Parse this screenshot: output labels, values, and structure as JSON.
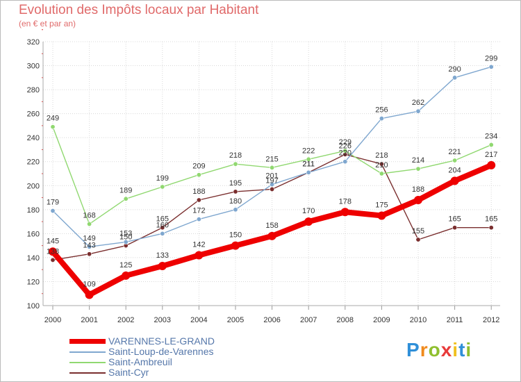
{
  "title": "Evolution des Impôts locaux par Habitant",
  "subtitle": "(en € et par an)",
  "logo_text": "Proxiti",
  "chart_data": {
    "type": "line",
    "title": "Evolution des Impôts locaux par Habitant",
    "ylabel": "(en € et par an)",
    "xlabel": "",
    "categories": [
      "2000",
      "2001",
      "2002",
      "2003",
      "2004",
      "2005",
      "2006",
      "2007",
      "2008",
      "2009",
      "2010",
      "2011",
      "2012"
    ],
    "yticks": [
      "100",
      "120",
      "140",
      "160",
      "180",
      "200",
      "220",
      "240",
      "260",
      "280",
      "300",
      "320"
    ],
    "ylim": [
      100,
      320
    ],
    "grid": true,
    "legend": "bottom-left",
    "series": [
      {
        "name": "Saint-Cyr",
        "color": "#7a2e2e",
        "values": [
          138,
          143,
          150,
          165,
          188,
          195,
          197,
          211,
          226,
          218,
          155,
          165,
          165
        ]
      },
      {
        "name": "Saint-Ambreuil",
        "color": "#90d870",
        "values": [
          249,
          168,
          189,
          199,
          209,
          218,
          215,
          222,
          229,
          210,
          214,
          221,
          234
        ]
      },
      {
        "name": "Saint-Loup-de-Varennes",
        "color": "#7fa7cf",
        "values": [
          179,
          149,
          153,
          160,
          172,
          180,
          201,
          211,
          220,
          256,
          262,
          290,
          299
        ]
      },
      {
        "name": "VARENNES-LE-GRAND",
        "color": "#ee0000",
        "values": [
          145,
          109,
          125,
          133,
          142,
          150,
          158,
          170,
          178,
          175,
          188,
          204,
          217
        ]
      }
    ],
    "legend_entries": [
      "VARENNES-LE-GRAND",
      "Saint-Loup-de-Varennes",
      "Saint-Ambreuil",
      "Saint-Cyr"
    ]
  }
}
